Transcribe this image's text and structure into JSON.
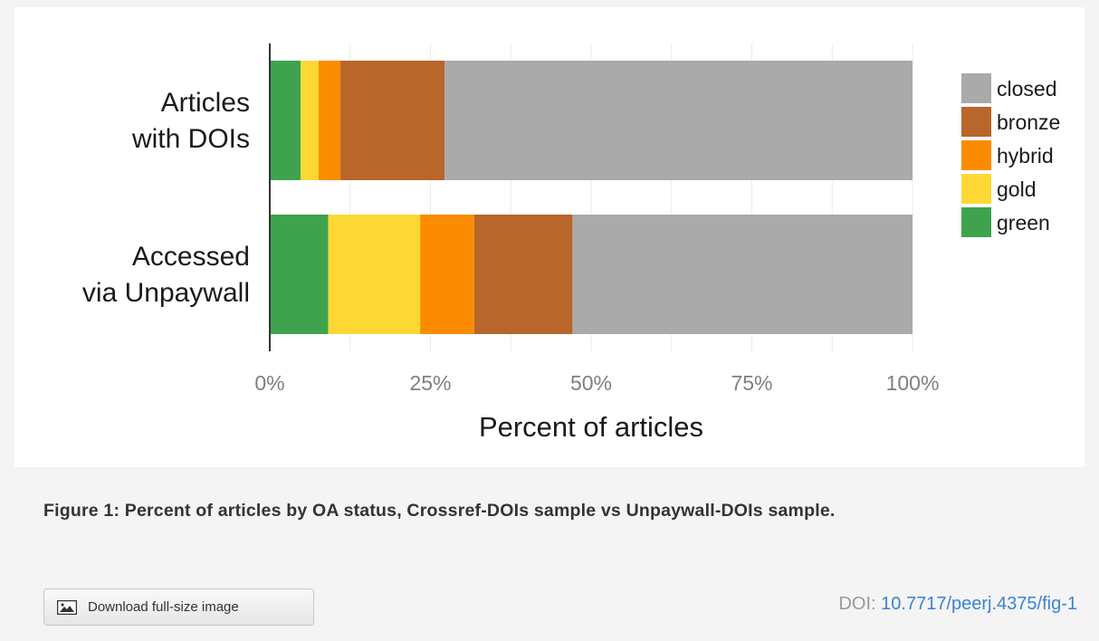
{
  "chart_data": {
    "type": "bar",
    "orientation": "horizontal",
    "stacked": true,
    "categories": [
      "Articles with DOIs",
      "Accessed via Unpaywall"
    ],
    "category_lines": [
      [
        "Articles",
        "with DOIs"
      ],
      [
        "Accessed",
        "via Unpaywall"
      ]
    ],
    "series": [
      {
        "name": "green",
        "color": "#3fa34d",
        "values": [
          4.8,
          9.1
        ]
      },
      {
        "name": "gold",
        "color": "#fdd835",
        "values": [
          2.8,
          14.3
        ]
      },
      {
        "name": "hybrid",
        "color": "#fb8c00",
        "values": [
          3.4,
          8.4
        ]
      },
      {
        "name": "bronze",
        "color": "#b8662b",
        "values": [
          16.2,
          15.3
        ]
      },
      {
        "name": "closed",
        "color": "#aaaaaa",
        "values": [
          72.8,
          52.9
        ]
      }
    ],
    "legend_order": [
      "closed",
      "bronze",
      "hybrid",
      "gold",
      "green"
    ],
    "legend_position": "right",
    "xlim": [
      0,
      100
    ],
    "xticks": [
      "0%",
      "25%",
      "50%",
      "75%",
      "100%"
    ],
    "xlabel": "Percent of articles",
    "ylabel": "",
    "title": "",
    "grid": true
  },
  "caption": "Figure 1: Percent of articles by OA status, Crossref-DOIs sample vs Unpaywall-DOIs sample.",
  "download": {
    "label": "Download full-size image",
    "icon": "image-icon"
  },
  "doi": {
    "prefix": "DOI: ",
    "link": "10.7717/peerj.4375/fig-1"
  }
}
